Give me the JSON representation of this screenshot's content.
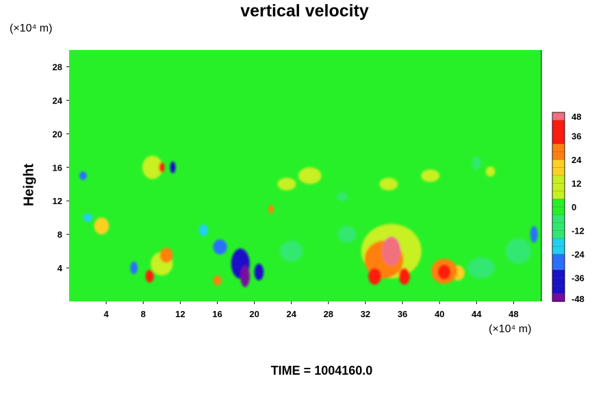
{
  "chart_data": {
    "type": "heatmap",
    "title": "vertical velocity",
    "ylabel": "Height",
    "xlabel": "",
    "x_unit": "(×10⁴ m)",
    "y_unit": "(×10⁴ m)",
    "xlim": [
      0,
      51
    ],
    "ylim": [
      0,
      30
    ],
    "x_ticks": [
      4,
      8,
      12,
      16,
      20,
      24,
      28,
      32,
      36,
      40,
      44,
      48
    ],
    "y_ticks": [
      4,
      8,
      12,
      16,
      20,
      24,
      28
    ],
    "colorbar": {
      "range": [
        -48,
        48
      ],
      "ticks": [
        48,
        36,
        24,
        12,
        0,
        -12,
        -24,
        -36,
        -48
      ],
      "colors": [
        "#7a0aa0",
        "#1a10c8",
        "#2a70ff",
        "#20d0f0",
        "#30e870",
        "#28f028",
        "#c8f020",
        "#ffd020",
        "#ff8010",
        "#ff1a10",
        "#f07080"
      ]
    },
    "background_value": 0,
    "features": [
      {
        "x": 34.8,
        "y": 6.0,
        "w": 2.0,
        "h": 3.5,
        "v": 46
      },
      {
        "x": 34.0,
        "y": 5.0,
        "w": 4.2,
        "h": 4.5,
        "v": 28
      },
      {
        "x": 33.0,
        "y": 3.0,
        "w": 1.4,
        "h": 2.0,
        "v": 42
      },
      {
        "x": 36.2,
        "y": 3.0,
        "w": 1.2,
        "h": 2.0,
        "v": 34
      },
      {
        "x": 40.5,
        "y": 3.5,
        "w": 1.4,
        "h": 1.8,
        "v": 42
      },
      {
        "x": 40.5,
        "y": 3.6,
        "w": 2.8,
        "h": 3.0,
        "v": 28
      },
      {
        "x": 42.0,
        "y": 3.4,
        "w": 1.4,
        "h": 1.8,
        "v": 22
      },
      {
        "x": 34.8,
        "y": 6.0,
        "w": 6.5,
        "h": 6.5,
        "v": 10
      },
      {
        "x": 19.0,
        "y": 3.0,
        "w": 1.0,
        "h": 2.6,
        "v": -48
      },
      {
        "x": 18.5,
        "y": 4.5,
        "w": 2.0,
        "h": 3.6,
        "v": -38
      },
      {
        "x": 20.5,
        "y": 3.5,
        "w": 1.0,
        "h": 2.0,
        "v": -34
      },
      {
        "x": 16.3,
        "y": 6.5,
        "w": 1.5,
        "h": 1.8,
        "v": -30
      },
      {
        "x": 14.5,
        "y": 8.5,
        "w": 1.0,
        "h": 1.4,
        "v": -22
      },
      {
        "x": 7.0,
        "y": 4.0,
        "w": 0.8,
        "h": 1.5,
        "v": -26
      },
      {
        "x": 8.7,
        "y": 3.0,
        "w": 0.9,
        "h": 1.5,
        "v": 38
      },
      {
        "x": 10.5,
        "y": 5.5,
        "w": 1.4,
        "h": 1.8,
        "v": 28
      },
      {
        "x": 10.0,
        "y": 4.5,
        "w": 2.4,
        "h": 2.8,
        "v": 14
      },
      {
        "x": 16.0,
        "y": 2.5,
        "w": 0.9,
        "h": 1.2,
        "v": 30
      },
      {
        "x": 10.0,
        "y": 16.0,
        "w": 0.6,
        "h": 1.2,
        "v": 42
      },
      {
        "x": 9.0,
        "y": 16.0,
        "w": 2.2,
        "h": 2.8,
        "v": 14
      },
      {
        "x": 11.2,
        "y": 16.0,
        "w": 0.6,
        "h": 1.4,
        "v": -34
      },
      {
        "x": 1.5,
        "y": 15.0,
        "w": 0.8,
        "h": 1.0,
        "v": -30
      },
      {
        "x": 3.5,
        "y": 9.0,
        "w": 1.6,
        "h": 2.0,
        "v": 18
      },
      {
        "x": 2.0,
        "y": 10.0,
        "w": 1.0,
        "h": 1.0,
        "v": -16
      },
      {
        "x": 21.8,
        "y": 11.0,
        "w": 0.6,
        "h": 1.0,
        "v": 32
      },
      {
        "x": 50.2,
        "y": 8.0,
        "w": 0.8,
        "h": 2.0,
        "v": -30
      },
      {
        "x": 48.5,
        "y": 6.0,
        "w": 2.8,
        "h": 3.0,
        "v": -12
      },
      {
        "x": 44.5,
        "y": 4.0,
        "w": 3.0,
        "h": 2.5,
        "v": -12
      },
      {
        "x": 26.0,
        "y": 15.0,
        "w": 2.5,
        "h": 2.0,
        "v": 10
      },
      {
        "x": 39.0,
        "y": 15.0,
        "w": 2.0,
        "h": 1.5,
        "v": 9
      },
      {
        "x": 44.0,
        "y": 16.5,
        "w": 1.0,
        "h": 1.5,
        "v": -12
      },
      {
        "x": 45.5,
        "y": 15.5,
        "w": 1.0,
        "h": 1.2,
        "v": 12
      },
      {
        "x": 29.5,
        "y": 12.5,
        "w": 1.2,
        "h": 1.0,
        "v": -12
      },
      {
        "x": 23.5,
        "y": 14.0,
        "w": 2.0,
        "h": 1.5,
        "v": 8
      },
      {
        "x": 34.5,
        "y": 14.0,
        "w": 2.0,
        "h": 1.5,
        "v": 8
      },
      {
        "x": 30.0,
        "y": 8.0,
        "w": 2.0,
        "h": 2.0,
        "v": -6
      },
      {
        "x": 24.0,
        "y": 6.0,
        "w": 2.5,
        "h": 2.5,
        "v": -6
      }
    ],
    "time_label": "TIME = 1004160.0"
  }
}
